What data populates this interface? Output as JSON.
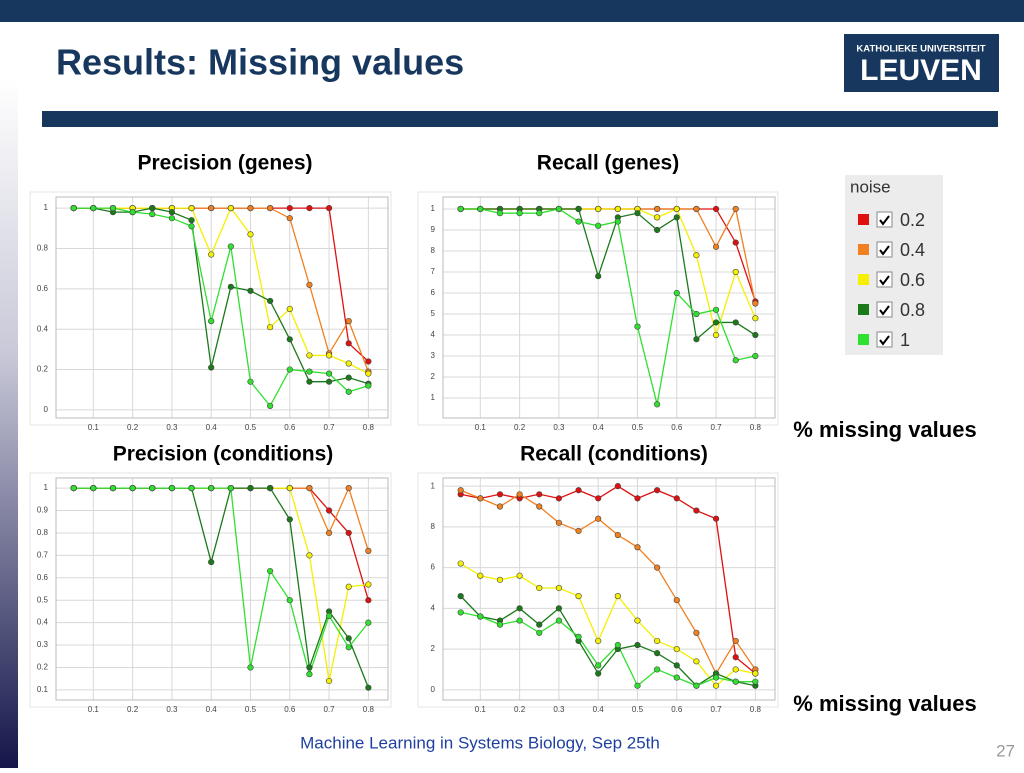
{
  "slide_title": "Results: Missing values",
  "logo": {
    "line1": "KATHOLIEKE UNIVERSITEIT",
    "line2": "LEUVEN"
  },
  "legend_title": "noise",
  "footer": "Machine Learning in Systems Biology, Sep 25th",
  "page_number": "27",
  "chart_data": [
    {
      "type": "line",
      "title": "Precision (genes)",
      "grid": true,
      "x": [
        0.05,
        0.1,
        0.15,
        0.2,
        0.25,
        0.3,
        0.35,
        0.4,
        0.45,
        0.5,
        0.55,
        0.6,
        0.65,
        0.7,
        0.75,
        0.8
      ],
      "xlim": [
        0.005,
        0.85
      ],
      "xticks": [
        0.1,
        0.2,
        0.3,
        0.4,
        0.5,
        0.6,
        0.7,
        0.8
      ],
      "ylim": [
        -0.04,
        1.055
      ],
      "yticks": [
        0,
        0.2,
        0.4,
        0.6,
        0.8,
        1
      ],
      "series": [
        {
          "name": "0.2",
          "color": "#e01010",
          "values": [
            1,
            1,
            1,
            1,
            1,
            1,
            1,
            1,
            1,
            1,
            1,
            1,
            1,
            1,
            0.33,
            0.24
          ]
        },
        {
          "name": "0.4",
          "color": "#f08020",
          "values": [
            1,
            1,
            1,
            1,
            1,
            1,
            1,
            1,
            1,
            1,
            1,
            0.95,
            0.62,
            0.28,
            0.44,
            0.19
          ]
        },
        {
          "name": "0.6",
          "color": "#f4f000",
          "values": [
            1,
            1,
            1,
            1,
            1,
            1,
            1,
            0.77,
            1,
            0.87,
            0.41,
            0.5,
            0.27,
            0.27,
            0.23,
            0.18
          ]
        },
        {
          "name": "0.8",
          "color": "#1a7a1a",
          "values": [
            1,
            1,
            0.98,
            0.98,
            1,
            0.98,
            0.94,
            0.21,
            0.61,
            0.59,
            0.54,
            0.35,
            0.14,
            0.14,
            0.16,
            0.13
          ]
        },
        {
          "name": "1",
          "color": "#30e030",
          "values": [
            1,
            1,
            1,
            0.98,
            0.97,
            0.95,
            0.91,
            0.44,
            0.81,
            0.14,
            0.02,
            0.2,
            0.19,
            0.18,
            0.09,
            0.12
          ]
        }
      ]
    },
    {
      "type": "line",
      "title": "Recall (genes)",
      "grid": true,
      "xlabel": "% missing values",
      "x": [
        0.05,
        0.1,
        0.15,
        0.2,
        0.25,
        0.3,
        0.35,
        0.4,
        0.45,
        0.5,
        0.55,
        0.6,
        0.65,
        0.7,
        0.75,
        0.8
      ],
      "xlim": [
        0.005,
        0.85
      ],
      "xticks": [
        0.1,
        0.2,
        0.3,
        0.4,
        0.5,
        0.6,
        0.7,
        0.8
      ],
      "ylim": [
        0.005,
        1.057
      ],
      "yticks": [
        {
          "value": 0.1,
          "label": "1"
        },
        {
          "value": 0.2,
          "label": "2"
        },
        {
          "value": 0.3,
          "label": "3"
        },
        {
          "value": 0.4,
          "label": "4"
        },
        {
          "value": 0.5,
          "label": "5"
        },
        {
          "value": 0.6,
          "label": "6"
        },
        {
          "value": 0.7,
          "label": "7"
        },
        {
          "value": 0.8,
          "label": "8"
        },
        {
          "value": 0.9,
          "label": "9"
        },
        1
      ],
      "series": [
        {
          "name": "0.2",
          "color": "#e01010",
          "values": [
            1,
            1,
            1,
            1,
            1,
            1,
            1,
            1,
            1,
            1,
            1,
            1,
            1,
            1,
            0.84,
            0.56
          ]
        },
        {
          "name": "0.4",
          "color": "#f08020",
          "values": [
            1,
            1,
            1,
            1,
            1,
            1,
            1,
            1,
            1,
            1,
            1,
            1,
            1,
            0.82,
            1,
            0.55
          ]
        },
        {
          "name": "0.6",
          "color": "#f4f000",
          "values": [
            1,
            1,
            1,
            1,
            1,
            1,
            1,
            1,
            1,
            1,
            0.96,
            1,
            0.78,
            0.4,
            0.7,
            0.48
          ]
        },
        {
          "name": "0.8",
          "color": "#1a7a1a",
          "values": [
            1,
            1,
            1,
            1,
            1,
            1,
            1,
            0.68,
            0.96,
            0.98,
            0.9,
            0.96,
            0.38,
            0.46,
            0.46,
            0.4
          ]
        },
        {
          "name": "1",
          "color": "#30e030",
          "values": [
            1,
            1,
            0.98,
            0.98,
            0.98,
            1,
            0.94,
            0.92,
            0.94,
            0.44,
            0.07,
            0.6,
            0.5,
            0.52,
            0.28,
            0.3
          ]
        }
      ]
    },
    {
      "type": "line",
      "title": "Precision (conditions)",
      "grid": true,
      "x": [
        0.05,
        0.1,
        0.15,
        0.2,
        0.25,
        0.3,
        0.35,
        0.4,
        0.45,
        0.5,
        0.55,
        0.6,
        0.65,
        0.7,
        0.75,
        0.8
      ],
      "xlim": [
        0.005,
        0.85
      ],
      "xticks": [
        0.1,
        0.2,
        0.3,
        0.4,
        0.5,
        0.6,
        0.7,
        0.8
      ],
      "ylim": [
        0.055,
        1.045
      ],
      "yticks": [
        0.1,
        0.2,
        0.3,
        0.4,
        0.5,
        0.6,
        0.7,
        0.8,
        0.9,
        1
      ],
      "series": [
        {
          "name": "0.2",
          "color": "#e01010",
          "values": [
            1,
            1,
            1,
            1,
            1,
            1,
            1,
            1,
            1,
            1,
            1,
            1,
            1,
            0.9,
            0.8,
            0.5
          ]
        },
        {
          "name": "0.4",
          "color": "#f08020",
          "values": [
            1,
            1,
            1,
            1,
            1,
            1,
            1,
            1,
            1,
            1,
            1,
            1,
            1,
            0.8,
            1,
            0.72
          ]
        },
        {
          "name": "0.6",
          "color": "#f4f000",
          "values": [
            1,
            1,
            1,
            1,
            1,
            1,
            1,
            1,
            1,
            1,
            1,
            1,
            0.7,
            0.14,
            0.56,
            0.57
          ]
        },
        {
          "name": "0.8",
          "color": "#1a7a1a",
          "values": [
            1,
            1,
            1,
            1,
            1,
            1,
            1,
            0.67,
            1,
            1,
            1,
            0.86,
            0.2,
            0.45,
            0.33,
            0.11
          ]
        },
        {
          "name": "1",
          "color": "#30e030",
          "values": [
            1,
            1,
            1,
            1,
            1,
            1,
            1,
            1,
            1,
            0.2,
            0.63,
            0.5,
            0.17,
            0.43,
            0.29,
            0.4
          ]
        }
      ]
    },
    {
      "type": "line",
      "title": "Recall (conditions)",
      "grid": true,
      "xlabel": "% missing values",
      "x": [
        0.05,
        0.1,
        0.15,
        0.2,
        0.25,
        0.3,
        0.35,
        0.4,
        0.45,
        0.5,
        0.55,
        0.6,
        0.65,
        0.7,
        0.75,
        0.8
      ],
      "xlim": [
        0.005,
        0.85
      ],
      "xticks": [
        0.1,
        0.2,
        0.3,
        0.4,
        0.5,
        0.6,
        0.7,
        0.8
      ],
      "ylim": [
        -0.05,
        1.04
      ],
      "yticks": [
        0,
        {
          "value": 0.2,
          "label": "2"
        },
        {
          "value": 0.4,
          "label": "4"
        },
        {
          "value": 0.6,
          "label": "6"
        },
        {
          "value": 0.8,
          "label": "8"
        },
        1
      ],
      "series": [
        {
          "name": "0.2",
          "color": "#e01010",
          "values": [
            0.96,
            0.94,
            0.96,
            0.94,
            0.96,
            0.94,
            0.98,
            0.94,
            1,
            0.94,
            0.98,
            0.94,
            0.88,
            0.84,
            0.16,
            0.08
          ]
        },
        {
          "name": "0.4",
          "color": "#f08020",
          "values": [
            0.98,
            0.94,
            0.9,
            0.96,
            0.9,
            0.82,
            0.78,
            0.84,
            0.76,
            0.7,
            0.6,
            0.44,
            0.28,
            0.08,
            0.24,
            0.1
          ]
        },
        {
          "name": "0.6",
          "color": "#f4f000",
          "values": [
            0.62,
            0.56,
            0.54,
            0.56,
            0.5,
            0.5,
            0.46,
            0.24,
            0.46,
            0.34,
            0.24,
            0.2,
            0.14,
            0.02,
            0.1,
            0.08
          ]
        },
        {
          "name": "0.8",
          "color": "#1a7a1a",
          "values": [
            0.46,
            0.36,
            0.34,
            0.4,
            0.32,
            0.4,
            0.24,
            0.08,
            0.2,
            0.22,
            0.18,
            0.12,
            0.02,
            0.08,
            0.04,
            0.02
          ]
        },
        {
          "name": "1",
          "color": "#30e030",
          "values": [
            0.38,
            0.36,
            0.32,
            0.34,
            0.28,
            0.34,
            0.26,
            0.12,
            0.22,
            0.02,
            0.1,
            0.06,
            0.02,
            0.06,
            0.04,
            0.04
          ]
        }
      ]
    }
  ]
}
